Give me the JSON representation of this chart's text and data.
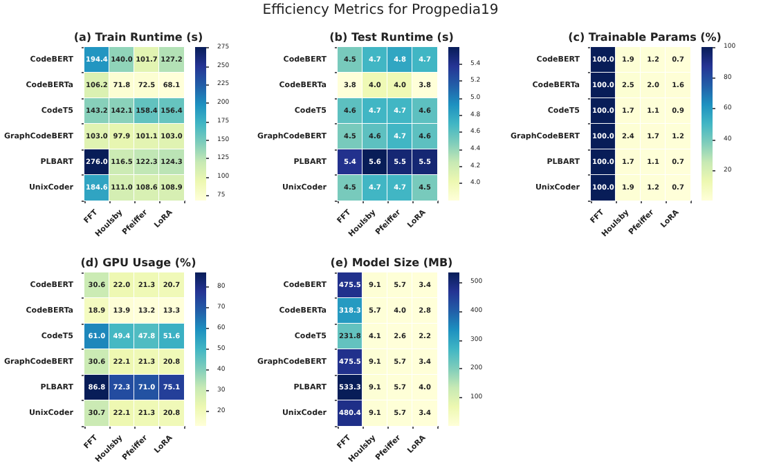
{
  "chart_data": [
    {
      "type": "other",
      "title": "Efficiency Metrics for Progpedia19"
    },
    {
      "type": "heatmap",
      "title": "(a) Train Runtime (s)",
      "categories": [
        "FFT",
        "Houlsby",
        "Pfeiffer",
        "LoRA"
      ],
      "y_categories": [
        "CodeBERT",
        "CodeBERTa",
        "CodeT5",
        "GraphCodeBERT",
        "PLBART",
        "UnixCoder"
      ],
      "clim": [
        68.1,
        276.0
      ],
      "cticks": [
        75,
        100,
        125,
        150,
        175,
        200,
        225,
        250,
        275
      ],
      "cells": [
        [
          194.4,
          140.0,
          101.7,
          127.2
        ],
        [
          106.2,
          71.8,
          72.5,
          68.1
        ],
        [
          143.2,
          142.1,
          158.4,
          156.4
        ],
        [
          103.0,
          97.9,
          101.1,
          103.0
        ],
        [
          276.0,
          116.5,
          122.3,
          124.3
        ],
        [
          184.6,
          111.0,
          108.6,
          108.9
        ]
      ],
      "cell_labels": [
        [
          "194.4",
          "140.0",
          "101.7",
          "127.2"
        ],
        [
          "106.2",
          "71.8",
          "72.5",
          "68.1"
        ],
        [
          "143.2",
          "142.1",
          "158.4",
          "156.4"
        ],
        [
          "103.0",
          "97.9",
          "101.1",
          "103.0"
        ],
        [
          "276.0",
          "116.5",
          "122.3",
          "124.3"
        ],
        [
          "184.6",
          "111.0",
          "108.6",
          "108.9"
        ]
      ]
    },
    {
      "type": "heatmap",
      "title": "(b) Test Runtime (s)",
      "categories": [
        "FFT",
        "Houlsby",
        "Pfeiffer",
        "LoRA"
      ],
      "y_categories": [
        "CodeBERT",
        "CodeBERTa",
        "CodeT5",
        "GraphCodeBERT",
        "PLBART",
        "UnixCoder"
      ],
      "clim": [
        3.8,
        5.6
      ],
      "cticks": [
        {
          "value": 4.0,
          "label": "4.0"
        },
        4.2,
        4.4,
        4.6,
        4.8,
        {
          "value": 5.0,
          "label": "5.0"
        },
        5.2,
        5.4
      ],
      "cells": [
        [
          4.5,
          4.7,
          4.8,
          4.7
        ],
        [
          3.8,
          4.0,
          4.0,
          3.8
        ],
        [
          4.6,
          4.7,
          4.7,
          4.6
        ],
        [
          4.5,
          4.6,
          4.7,
          4.6
        ],
        [
          5.4,
          5.6,
          5.5,
          5.5
        ],
        [
          4.5,
          4.7,
          4.7,
          4.5
        ]
      ],
      "cell_labels": [
        [
          "4.5",
          "4.7",
          "4.8",
          "4.7"
        ],
        [
          "3.8",
          "4.0",
          "4.0",
          "3.8"
        ],
        [
          "4.6",
          "4.7",
          "4.7",
          "4.6"
        ],
        [
          "4.5",
          "4.6",
          "4.7",
          "4.6"
        ],
        [
          "5.4",
          "5.6",
          "5.5",
          "5.5"
        ],
        [
          "4.5",
          "4.7",
          "4.7",
          "4.5"
        ]
      ]
    },
    {
      "type": "heatmap",
      "title": "(c) Trainable Params (%)",
      "categories": [
        "FFT",
        "Houlsby",
        "Pfeiffer",
        "LoRA"
      ],
      "y_categories": [
        "CodeBERT",
        "CodeBERTa",
        "CodeT5",
        "GraphCodeBERT",
        "PLBART",
        "UnixCoder"
      ],
      "clim": [
        0.7,
        100.0
      ],
      "cticks": [
        20,
        40,
        60,
        80,
        100
      ],
      "cells": [
        [
          100.0,
          1.9,
          1.2,
          0.7
        ],
        [
          100.0,
          2.5,
          2.0,
          1.6
        ],
        [
          100.0,
          1.7,
          1.1,
          0.9
        ],
        [
          100.0,
          2.4,
          1.7,
          1.2
        ],
        [
          100.0,
          1.7,
          1.1,
          0.7
        ],
        [
          100.0,
          1.9,
          1.2,
          0.7
        ]
      ],
      "cell_labels": [
        [
          "100.0",
          "1.9",
          "1.2",
          "0.7"
        ],
        [
          "100.0",
          "2.5",
          "2.0",
          "1.6"
        ],
        [
          "100.0",
          "1.7",
          "1.1",
          "0.9"
        ],
        [
          "100.0",
          "2.4",
          "1.7",
          "1.2"
        ],
        [
          "100.0",
          "1.7",
          "1.1",
          "0.7"
        ],
        [
          "100.0",
          "1.9",
          "1.2",
          "0.7"
        ]
      ]
    },
    {
      "type": "heatmap",
      "title": "(d) GPU Usage (%)",
      "categories": [
        "FFT",
        "Houlsby",
        "Pfeiffer",
        "LoRA"
      ],
      "y_categories": [
        "CodeBERT",
        "CodeBERTa",
        "CodeT5",
        "GraphCodeBERT",
        "PLBART",
        "UnixCoder"
      ],
      "clim": [
        13.2,
        86.8
      ],
      "cticks": [
        20,
        30,
        40,
        50,
        60,
        70,
        80
      ],
      "cells": [
        [
          30.6,
          22.0,
          21.3,
          20.7
        ],
        [
          18.9,
          13.9,
          13.2,
          13.3
        ],
        [
          61.0,
          49.4,
          47.8,
          51.6
        ],
        [
          30.6,
          22.1,
          21.3,
          20.8
        ],
        [
          86.8,
          72.3,
          71.0,
          75.1
        ],
        [
          30.7,
          22.1,
          21.3,
          20.8
        ]
      ],
      "cell_labels": [
        [
          "30.6",
          "22.0",
          "21.3",
          "20.7"
        ],
        [
          "18.9",
          "13.9",
          "13.2",
          "13.3"
        ],
        [
          "61.0",
          "49.4",
          "47.8",
          "51.6"
        ],
        [
          "30.6",
          "22.1",
          "21.3",
          "20.8"
        ],
        [
          "86.8",
          "72.3",
          "71.0",
          "75.1"
        ],
        [
          "30.7",
          "22.1",
          "21.3",
          "20.8"
        ]
      ]
    },
    {
      "type": "heatmap",
      "title": "(e) Model Size (MB)",
      "categories": [
        "FFT",
        "Houlsby",
        "Pfeiffer",
        "LoRA"
      ],
      "y_categories": [
        "CodeBERT",
        "CodeBERTa",
        "CodeT5",
        "GraphCodeBERT",
        "PLBART",
        "UnixCoder"
      ],
      "clim": [
        2.2,
        533.3
      ],
      "cticks": [
        100,
        200,
        300,
        400,
        500
      ],
      "cells": [
        [
          475.5,
          9.1,
          5.7,
          3.4
        ],
        [
          318.3,
          5.7,
          4.0,
          2.8
        ],
        [
          231.8,
          4.1,
          2.6,
          2.2
        ],
        [
          475.5,
          9.1,
          5.7,
          3.4
        ],
        [
          533.3,
          9.1,
          5.7,
          4.0
        ],
        [
          480.4,
          9.1,
          5.7,
          3.4
        ]
      ],
      "cell_labels": [
        [
          "475.5",
          "9.1",
          "5.7",
          "3.4"
        ],
        [
          "318.3",
          "5.7",
          "4.0",
          "2.8"
        ],
        [
          "231.8",
          "4.1",
          "2.6",
          "2.2"
        ],
        [
          "475.5",
          "9.1",
          "5.7",
          "3.4"
        ],
        [
          "533.3",
          "9.1",
          "5.7",
          "4.0"
        ],
        [
          "480.4",
          "9.1",
          "5.7",
          "3.4"
        ]
      ]
    }
  ]
}
